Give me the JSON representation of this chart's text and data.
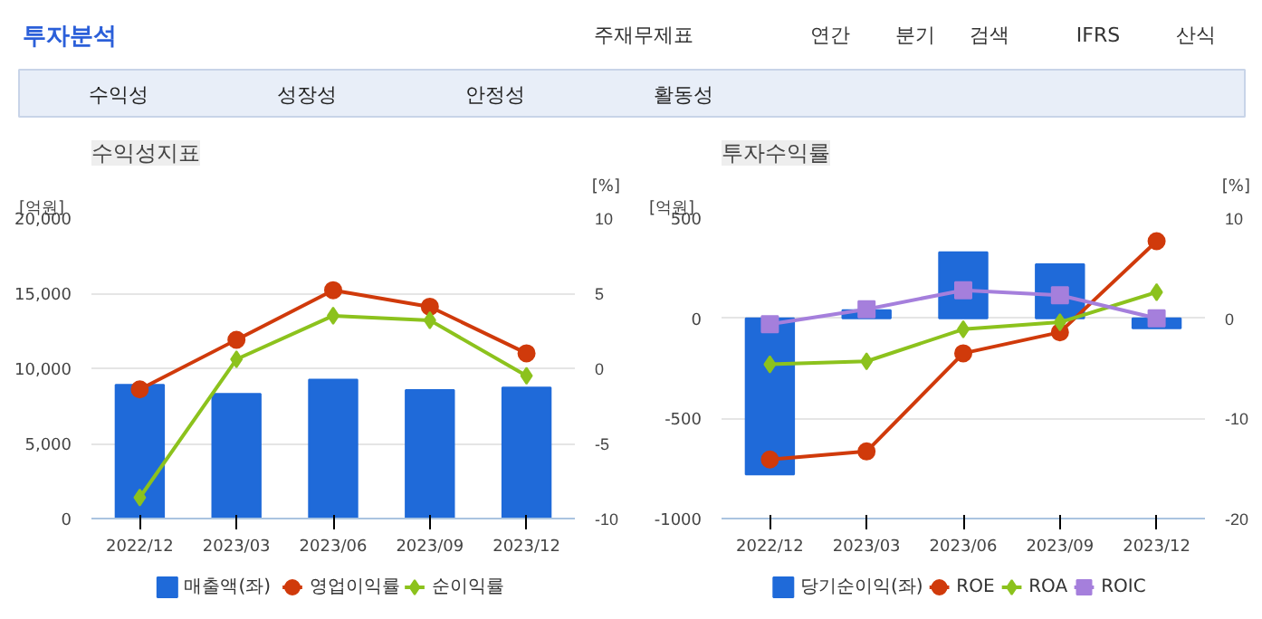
{
  "chart_data": [
    {
      "type": "other",
      "title": "투자분석",
      "annotations": [
        "주재무제표",
        "연간",
        "분기",
        "검색",
        "IFRS",
        "산식",
        "수익성",
        "성장성",
        "안정성",
        "활동성"
      ]
    },
    {
      "type": "bar",
      "title": "수익성지표",
      "ylabel": "[억원]",
      "y2label": "[%]",
      "categories": [
        "2022/12",
        "2023/03",
        "2023/06",
        "2023/09",
        "2023/12"
      ],
      "ylim": [
        0,
        20000
      ],
      "yticks": [
        0,
        {
          "value": 5000,
          "label": "5,000"
        },
        {
          "value": 10000,
          "label": "10,000"
        },
        {
          "value": 15000,
          "label": "15,000"
        },
        {
          "value": 20000,
          "label": "20,000"
        }
      ],
      "y2lim": [
        -10,
        10
      ],
      "y2ticks": [
        -10,
        -5,
        0,
        5,
        10
      ],
      "grid": "y",
      "legend": "bottom",
      "series": [
        {
          "name": "매출액(좌)",
          "type": "bar",
          "color": "#1f6ad9",
          "values": [
            8900,
            8300,
            9250,
            8550,
            8720
          ]
        },
        {
          "name": "영업이익률",
          "type": "line",
          "axis": "y2",
          "marker": "circle",
          "color": "#d03a0b",
          "values": [
            -1.4,
            1.9,
            5.2,
            4.1,
            1.0
          ]
        },
        {
          "name": "순이익률",
          "type": "line",
          "axis": "y2",
          "marker": "diamond",
          "color": "#8cc21d",
          "values": [
            -8.6,
            0.6,
            3.5,
            3.2,
            -0.5
          ]
        }
      ]
    },
    {
      "type": "bar",
      "title": "투자수익률",
      "ylabel": "[억원]",
      "y2label": "[%]",
      "categories": [
        "2022/12",
        "2023/03",
        "2023/06",
        "2023/09",
        "2023/12"
      ],
      "ylim": [
        -1000,
        500
      ],
      "yticks": [
        -1000,
        -500,
        0,
        500
      ],
      "y2lim": [
        -20,
        10
      ],
      "y2ticks": [
        -20,
        -10,
        0,
        10
      ],
      "grid": "y",
      "legend": "bottom",
      "series": [
        {
          "name": "당기순이익(좌)",
          "type": "bar",
          "color": "#1f6ad9",
          "values": [
            -780,
            40,
            330,
            270,
            -50
          ]
        },
        {
          "name": "ROE",
          "type": "line",
          "axis": "y2",
          "marker": "circle",
          "color": "#d03a0b",
          "values": [
            -14.1,
            -13.3,
            -3.5,
            -1.4,
            7.7
          ]
        },
        {
          "name": "ROA",
          "type": "line",
          "axis": "y2",
          "marker": "diamond",
          "color": "#8cc21d",
          "values": [
            -4.6,
            -4.3,
            -1.1,
            -0.4,
            2.6
          ]
        },
        {
          "name": "ROIC",
          "type": "line",
          "axis": "y2",
          "marker": "square",
          "color": "#a57fdc",
          "values": [
            -0.6,
            0.9,
            2.8,
            2.3,
            0.0
          ]
        }
      ]
    }
  ]
}
